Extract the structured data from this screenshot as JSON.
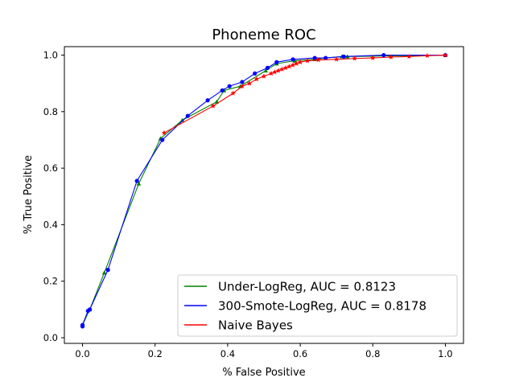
{
  "chart_data": {
    "type": "line",
    "title": "Phoneme ROC",
    "xlabel": "% False Positive",
    "ylabel": "% True Positive",
    "xlim": [
      -0.05,
      1.05
    ],
    "ylim": [
      -0.02,
      1.03
    ],
    "xticks": [
      0.0,
      0.2,
      0.4,
      0.6,
      0.8,
      1.0
    ],
    "xtick_labels": [
      "0.0",
      "0.2",
      "0.4",
      "0.6",
      "0.8",
      "1.0"
    ],
    "yticks": [
      0.0,
      0.2,
      0.4,
      0.6,
      0.8,
      1.0
    ],
    "ytick_labels": [
      "0.0",
      "0.2",
      "0.4",
      "0.6",
      "0.8",
      "1.0"
    ],
    "grid": false,
    "legend_position": "lower-right",
    "series": [
      {
        "name": "Under-LogReg, AUC = 0.8123",
        "color": "#008000",
        "marker": "triangle",
        "x": [
          0.0,
          0.02,
          0.06,
          0.155,
          0.215,
          0.275,
          0.37,
          0.39,
          0.435,
          0.505,
          0.535,
          0.585,
          0.64,
          0.67,
          0.715,
          0.73,
          1.0
        ],
        "y": [
          0.045,
          0.1,
          0.23,
          0.545,
          0.705,
          0.77,
          0.835,
          0.875,
          0.89,
          0.945,
          0.97,
          0.98,
          0.985,
          0.99,
          0.995,
          0.995,
          1.0
        ]
      },
      {
        "name": "300-Smote-LogReg, AUC = 0.8178",
        "color": "#0000ff",
        "marker": "circle",
        "x": [
          0.0,
          0.0,
          0.015,
          0.02,
          0.07,
          0.15,
          0.22,
          0.29,
          0.345,
          0.385,
          0.405,
          0.44,
          0.475,
          0.51,
          0.535,
          0.58,
          0.64,
          0.67,
          0.72,
          0.83,
          1.0
        ],
        "y": [
          0.04,
          0.045,
          0.095,
          0.1,
          0.24,
          0.555,
          0.7,
          0.785,
          0.84,
          0.875,
          0.89,
          0.905,
          0.935,
          0.955,
          0.975,
          0.985,
          0.99,
          0.99,
          0.995,
          1.0,
          1.0
        ]
      },
      {
        "name": "Naive Bayes",
        "color": "#ff0000",
        "marker": "star",
        "x": [
          0.225,
          0.36,
          0.415,
          0.44,
          0.46,
          0.48,
          0.5,
          0.52,
          0.53,
          0.54,
          0.55,
          0.56,
          0.57,
          0.58,
          0.59,
          0.6,
          0.62,
          0.65,
          0.7,
          0.75,
          0.8,
          0.85,
          0.9,
          0.95,
          1.0
        ],
        "y": [
          0.725,
          0.82,
          0.865,
          0.89,
          0.9,
          0.915,
          0.925,
          0.935,
          0.94,
          0.945,
          0.95,
          0.955,
          0.96,
          0.965,
          0.97,
          0.975,
          0.98,
          0.983,
          0.985,
          0.988,
          0.99,
          0.993,
          0.995,
          0.998,
          1.0
        ]
      }
    ]
  }
}
